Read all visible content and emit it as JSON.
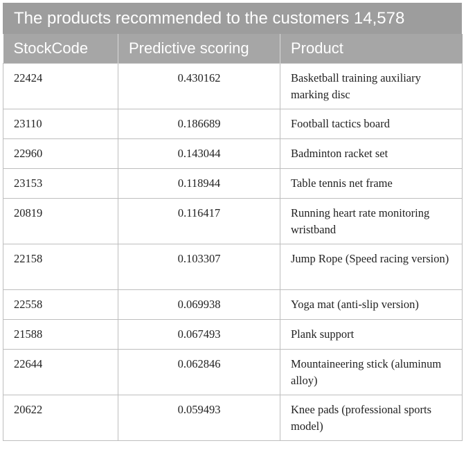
{
  "table": {
    "title": "The products recommended to the customers 14,578",
    "headers": {
      "stockcode": "StockCode",
      "score": "Predictive scoring",
      "product": "Product"
    },
    "rows": [
      {
        "stockcode": "22424",
        "score": "0.430162",
        "product": "Basketball training auxiliary marking disc"
      },
      {
        "stockcode": "23110",
        "score": "0.186689",
        "product": "Football tactics board"
      },
      {
        "stockcode": "22960",
        "score": "0.143044",
        "product": "Badminton racket set"
      },
      {
        "stockcode": "23153",
        "score": "0.118944",
        "product": "Table tennis net frame"
      },
      {
        "stockcode": "20819",
        "score": "0.116417",
        "product": "Running heart rate monitoring wristband"
      },
      {
        "stockcode": "22158",
        "score": "0.103307",
        "product": "Jump Rope (Speed racing version)"
      },
      {
        "stockcode": "22558",
        "score": "0.069938",
        "product": "Yoga mat (anti-slip version)"
      },
      {
        "stockcode": "21588",
        "score": "0.067493",
        "product": "Plank support"
      },
      {
        "stockcode": "22644",
        "score": "0.062846",
        "product": "Mountaineering stick (aluminum alloy)"
      },
      {
        "stockcode": "20622",
        "score": "0.059493",
        "product": "Knee pads (professional sports model)"
      }
    ]
  }
}
